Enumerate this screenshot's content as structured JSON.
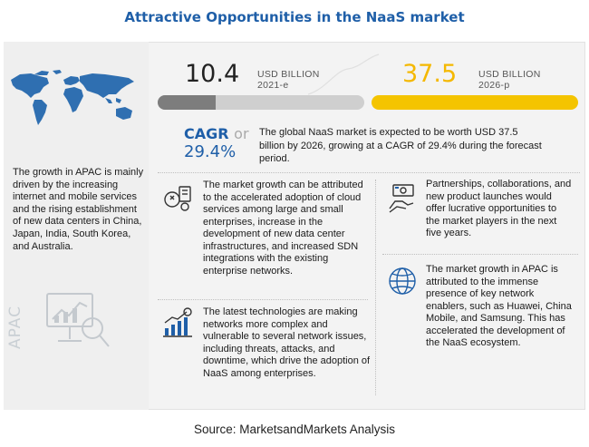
{
  "title": "Attractive Opportunities in the NaaS market",
  "metrics": {
    "current": {
      "value": "10.4",
      "unit": "USD BILLION",
      "year": "2021-e",
      "fill_fraction": 0.28
    },
    "forecast": {
      "value": "37.5",
      "unit": "USD BILLION",
      "year": "2026-p"
    }
  },
  "cagr": {
    "label": "CAGR",
    "or": "or",
    "value": "29.4%"
  },
  "summary": "The global NaaS market is expected to be worth USD 37.5 billion by 2026, growing at a CAGR of 29.4% during the forecast period.",
  "apac": {
    "label": "APAC",
    "text": "The growth in APAC is mainly driven by the increasing internet and mobile services and the rising establishment of new data centers in China, Japan, India, South Korea, and Australia."
  },
  "cards": [
    {
      "icon": "cloud-gear-icon",
      "text": "The market growth can be attributed to the accelerated adoption of cloud services among large and small enterprises, increase in the development of new data center infrastructures, and increased SDN integrations with the existing enterprise networks."
    },
    {
      "icon": "growth-chart-icon",
      "text": "The latest technologies are making networks more complex and vulnerable to several network issues, including threats, attacks, and downtime, which drive the adoption of NaaS among enterprises."
    },
    {
      "icon": "handshake-money-icon",
      "text": "Partnerships, collaborations, and new product launches would offer lucrative opportunities to the market players in the next five years."
    },
    {
      "icon": "globe-icon",
      "text": "The market growth in APAC is attributed to the immense presence of key network enablers, such as Huawei, China Mobile, and Samsung. This has accelerated the development of the NaaS ecosystem."
    }
  ],
  "source": "Source: MarketsandMarkets Analysis",
  "colors": {
    "title": "#1f5fa8",
    "accent": "#f4c400",
    "bar_grey": "#7d7d7d"
  }
}
